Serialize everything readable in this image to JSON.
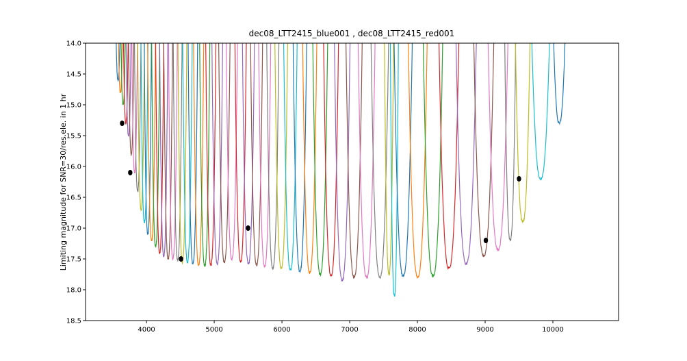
{
  "chart_data": {
    "type": "line",
    "title": "dec08_LTT2415_blue001 , dec08_LTT2415_red001",
    "xlabel": "",
    "ylabel": "Limiting magnitude for SNR=30/res.ele. in 1 hr",
    "xlim": [
      3100,
      10970
    ],
    "ylim": [
      18.5,
      14.0
    ],
    "y_inverted": true,
    "grid": false,
    "legend": "none",
    "x_ticks": [
      4000,
      5000,
      6000,
      7000,
      8000,
      9000,
      10000
    ],
    "x_tick_labels": [
      "4000",
      "5000",
      "6000",
      "7000",
      "8000",
      "9000",
      "10000"
    ],
    "y_ticks": [
      14.0,
      14.5,
      15.0,
      15.5,
      16.0,
      16.5,
      17.0,
      17.5,
      18.0,
      18.5
    ],
    "y_tick_labels": [
      "14.0",
      "14.5",
      "15.0",
      "15.5",
      "16.0",
      "16.5",
      "17.0",
      "17.5",
      "18.0",
      "18.5"
    ],
    "colors": [
      "#1f77b4",
      "#ff7f0e",
      "#2ca02c",
      "#d62728",
      "#9467bd",
      "#8c564b",
      "#e377c2",
      "#7f7f7f",
      "#bcbd22",
      "#17becf"
    ],
    "blue_orders": [
      {
        "start": 3520,
        "end": 3640,
        "min": 14.6
      },
      {
        "start": 3560,
        "end": 3670,
        "min": 14.8
      },
      {
        "start": 3600,
        "end": 3710,
        "min": 15.0
      },
      {
        "start": 3640,
        "end": 3750,
        "min": 15.3
      },
      {
        "start": 3680,
        "end": 3790,
        "min": 15.5
      },
      {
        "start": 3720,
        "end": 3830,
        "min": 15.8
      },
      {
        "start": 3770,
        "end": 3880,
        "min": 16.1
      },
      {
        "start": 3810,
        "end": 3930,
        "min": 16.4
      },
      {
        "start": 3860,
        "end": 3980,
        "min": 16.7
      },
      {
        "start": 3910,
        "end": 4030,
        "min": 16.9
      },
      {
        "start": 3960,
        "end": 4080,
        "min": 17.1
      },
      {
        "start": 4010,
        "end": 4140,
        "min": 17.2
      },
      {
        "start": 4070,
        "end": 4200,
        "min": 17.3
      },
      {
        "start": 4130,
        "end": 4260,
        "min": 17.4
      },
      {
        "start": 4190,
        "end": 4320,
        "min": 17.45
      },
      {
        "start": 4250,
        "end": 4390,
        "min": 17.5
      },
      {
        "start": 4320,
        "end": 4460,
        "min": 17.5
      },
      {
        "start": 4390,
        "end": 4530,
        "min": 17.52
      },
      {
        "start": 4460,
        "end": 4600,
        "min": 17.55
      },
      {
        "start": 4530,
        "end": 4680,
        "min": 17.55
      },
      {
        "start": 4610,
        "end": 4760,
        "min": 17.58
      },
      {
        "start": 4690,
        "end": 4850,
        "min": 17.6
      },
      {
        "start": 4780,
        "end": 4940,
        "min": 17.62
      },
      {
        "start": 4870,
        "end": 5030,
        "min": 17.6
      },
      {
        "start": 4960,
        "end": 5130,
        "min": 17.58
      },
      {
        "start": 5060,
        "end": 5240,
        "min": 17.55
      },
      {
        "start": 5170,
        "end": 5350,
        "min": 17.5
      }
    ],
    "red_orders": [
      {
        "start": 5300,
        "end": 5480,
        "min": 17.55
      },
      {
        "start": 5410,
        "end": 5600,
        "min": 17.58
      },
      {
        "start": 5530,
        "end": 5720,
        "min": 17.6
      },
      {
        "start": 5650,
        "end": 5840,
        "min": 17.62
      },
      {
        "start": 5770,
        "end": 5960,
        "min": 17.65
      },
      {
        "start": 5890,
        "end": 6090,
        "min": 17.65
      },
      {
        "start": 6020,
        "end": 6230,
        "min": 17.68
      },
      {
        "start": 6160,
        "end": 6370,
        "min": 17.7
      },
      {
        "start": 6300,
        "end": 6520,
        "min": 17.72
      },
      {
        "start": 6450,
        "end": 6680,
        "min": 17.75
      },
      {
        "start": 6610,
        "end": 6840,
        "min": 17.77
      },
      {
        "start": 6770,
        "end": 7010,
        "min": 17.85
      },
      {
        "start": 6940,
        "end": 7190,
        "min": 17.8
      },
      {
        "start": 7120,
        "end": 7380,
        "min": 17.8
      },
      {
        "start": 7310,
        "end": 7580,
        "min": 17.8
      },
      {
        "start": 7510,
        "end": 7650,
        "min": 17.75
      },
      {
        "start": 7600,
        "end": 7720,
        "min": 18.1
      },
      {
        "start": 7650,
        "end": 7930,
        "min": 17.78
      },
      {
        "start": 7860,
        "end": 8150,
        "min": 17.8
      },
      {
        "start": 8080,
        "end": 8380,
        "min": 17.78
      },
      {
        "start": 8310,
        "end": 8620,
        "min": 17.65
      },
      {
        "start": 8560,
        "end": 8880,
        "min": 17.58
      },
      {
        "start": 8820,
        "end": 9140,
        "min": 17.45
      },
      {
        "start": 9030,
        "end": 9350,
        "min": 17.35
      },
      {
        "start": 9280,
        "end": 9460,
        "min": 17.2
      },
      {
        "start": 9430,
        "end": 9680,
        "min": 16.9
      },
      {
        "start": 9650,
        "end": 9990,
        "min": 16.2
      },
      {
        "start": 9960,
        "end": 10230,
        "min": 15.3
      }
    ],
    "markers": [
      {
        "x": 3640,
        "y": 15.3
      },
      {
        "x": 3760,
        "y": 16.1
      },
      {
        "x": 4510,
        "y": 17.5
      },
      {
        "x": 5500,
        "y": 17.0
      },
      {
        "x": 9010,
        "y": 17.2
      },
      {
        "x": 9500,
        "y": 16.2
      }
    ]
  }
}
